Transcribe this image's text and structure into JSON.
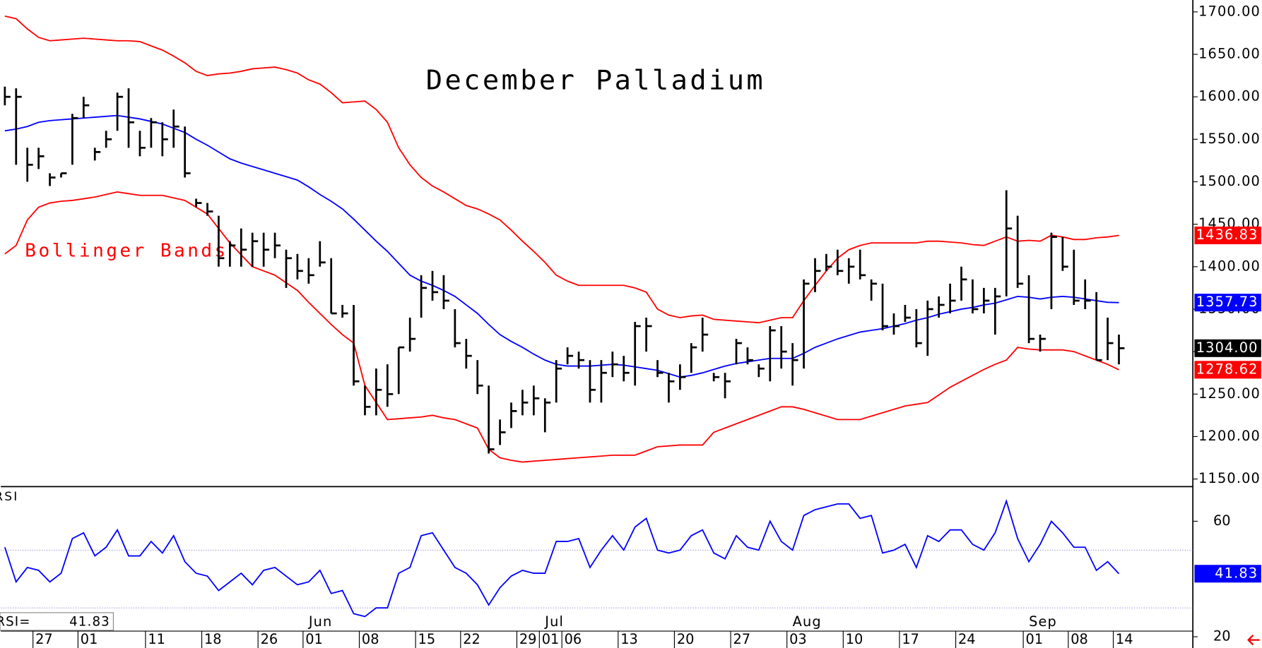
{
  "chart_data": [
    {
      "type": "ohlc",
      "title": "December Palladium",
      "annotation": "Bollinger Bands",
      "color": "#000000",
      "categories": [
        null,
        null,
        null,
        "27",
        null,
        null,
        null,
        "01",
        null,
        null,
        null,
        null,
        null,
        "11",
        null,
        null,
        null,
        null,
        "18",
        null,
        null,
        null,
        null,
        "26",
        null,
        null,
        null,
        "01",
        null,
        null,
        null,
        null,
        "08",
        null,
        null,
        null,
        null,
        "15",
        null,
        null,
        null,
        "22",
        null,
        null,
        null,
        null,
        "29",
        null,
        "01",
        null,
        "06",
        null,
        null,
        null,
        null,
        "13",
        null,
        null,
        null,
        null,
        "20",
        null,
        null,
        null,
        null,
        "27",
        null,
        null,
        null,
        null,
        "03",
        null,
        null,
        null,
        null,
        "10",
        null,
        null,
        null,
        null,
        "17",
        null,
        null,
        null,
        null,
        "24",
        null,
        null,
        null,
        null,
        null,
        "01",
        null,
        null,
        null,
        "08",
        null,
        null,
        null,
        "14"
      ],
      "months": [
        null,
        null,
        null,
        null,
        null,
        null,
        null,
        null,
        null,
        null,
        null,
        null,
        null,
        null,
        null,
        null,
        null,
        null,
        null,
        null,
        null,
        null,
        null,
        null,
        null,
        null,
        null,
        "Jun",
        null,
        null,
        null,
        null,
        null,
        null,
        null,
        null,
        null,
        null,
        null,
        null,
        null,
        null,
        null,
        null,
        null,
        null,
        null,
        null,
        "Jul",
        null,
        null,
        null,
        null,
        null,
        null,
        null,
        null,
        null,
        null,
        null,
        null,
        null,
        null,
        null,
        null,
        null,
        null,
        null,
        null,
        null,
        "Aug",
        null,
        null,
        null,
        null,
        null,
        null,
        null,
        null,
        null,
        null,
        null,
        null,
        null,
        null,
        null,
        null,
        null,
        null,
        null,
        null,
        "Sep",
        null,
        null,
        null,
        null,
        null,
        null,
        null,
        null
      ],
      "high": [
        1612,
        1610,
        1540,
        1540,
        1510,
        1510,
        1580,
        1600,
        1540,
        1560,
        1605,
        1610,
        1560,
        1575,
        1570,
        1585,
        1565,
        1480,
        1475,
        1460,
        1430,
        1445,
        1440,
        1440,
        1440,
        1420,
        1415,
        1410,
        1430,
        1410,
        1355,
        1355,
        1260,
        1280,
        1285,
        1305,
        1340,
        1390,
        1395,
        1390,
        1350,
        1315,
        1290,
        1260,
        1220,
        1240,
        1255,
        1260,
        1245,
        1290,
        1305,
        1300,
        1290,
        1290,
        1300,
        1295,
        1335,
        1340,
        1290,
        1275,
        1285,
        1310,
        1340,
        1275,
        1275,
        1315,
        1305,
        1285,
        1330,
        1330,
        1310,
        1385,
        1410,
        1415,
        1420,
        1410,
        1420,
        1385,
        1380,
        1345,
        1355,
        1350,
        1360,
        1365,
        1380,
        1400,
        1385,
        1375,
        1375,
        1490,
        1460,
        1390,
        1320,
        1440,
        1435,
        1420,
        1385,
        1370,
        1340,
        1320
      ],
      "low": [
        1590,
        1520,
        1500,
        1515,
        1495,
        1505,
        1520,
        1575,
        1525,
        1540,
        1560,
        1540,
        1530,
        1540,
        1530,
        1540,
        1505,
        1470,
        1460,
        1400,
        1400,
        1400,
        1400,
        1400,
        1410,
        1375,
        1385,
        1380,
        1400,
        1345,
        1340,
        1260,
        1225,
        1225,
        1235,
        1250,
        1300,
        1340,
        1360,
        1350,
        1305,
        1280,
        1250,
        1180,
        1190,
        1210,
        1225,
        1225,
        1205,
        1240,
        1285,
        1280,
        1240,
        1240,
        1270,
        1265,
        1260,
        1300,
        1270,
        1240,
        1255,
        1275,
        1300,
        1265,
        1245,
        1285,
        1285,
        1270,
        1265,
        1280,
        1260,
        1280,
        1370,
        1395,
        1390,
        1380,
        1385,
        1360,
        1325,
        1320,
        1335,
        1305,
        1295,
        1340,
        1345,
        1360,
        1345,
        1345,
        1320,
        1365,
        1375,
        1310,
        1300,
        1350,
        1395,
        1355,
        1350,
        1290,
        1290,
        1285
      ],
      "close": [
        1600,
        1600,
        1520,
        1530,
        1505,
        1510,
        1575,
        1590,
        1535,
        1550,
        1600,
        1570,
        1540,
        1570,
        1550,
        1565,
        1510,
        1475,
        1465,
        1410,
        1425,
        1420,
        1430,
        1420,
        1425,
        1410,
        1395,
        1390,
        1405,
        1345,
        1345,
        1265,
        1235,
        1255,
        1250,
        1305,
        1315,
        1375,
        1370,
        1360,
        1310,
        1295,
        1260,
        1185,
        1205,
        1230,
        1240,
        1245,
        1240,
        1280,
        1295,
        1290,
        1255,
        1275,
        1285,
        1275,
        1330,
        1330,
        1275,
        1265,
        1270,
        1305,
        1320,
        1270,
        1265,
        1310,
        1290,
        1280,
        1325,
        1300,
        1290,
        1380,
        1395,
        1400,
        1395,
        1400,
        1390,
        1380,
        1330,
        1330,
        1340,
        1310,
        1350,
        1355,
        1360,
        1385,
        1350,
        1360,
        1365,
        1445,
        1380,
        1315,
        1315,
        1435,
        1400,
        1360,
        1360,
        1290,
        1310,
        1304
      ],
      "close_label": "1304.00",
      "bands": [
        {
          "color": "#ff0000",
          "last_label": "1436.83",
          "values": [
            1695,
            1692,
            1680,
            1670,
            1666,
            1667,
            1668,
            1669,
            1668,
            1667,
            1666,
            1666,
            1665,
            1660,
            1655,
            1648,
            1640,
            1630,
            1625,
            1627,
            1628,
            1630,
            1633,
            1634,
            1635,
            1632,
            1628,
            1620,
            1615,
            1605,
            1593,
            1594,
            1595,
            1585,
            1570,
            1540,
            1520,
            1505,
            1495,
            1488,
            1480,
            1472,
            1468,
            1462,
            1455,
            1443,
            1430,
            1418,
            1405,
            1390,
            1383,
            1378,
            1378,
            1378,
            1378,
            1378,
            1375,
            1370,
            1350,
            1343,
            1340,
            1342,
            1343,
            1338,
            1337,
            1336,
            1335,
            1334,
            1337,
            1340,
            1340,
            1360,
            1378,
            1395,
            1410,
            1420,
            1425,
            1428,
            1428,
            1428,
            1428,
            1428,
            1430,
            1430,
            1429,
            1428,
            1426,
            1425,
            1430,
            1435,
            1430,
            1431,
            1430,
            1437,
            1435,
            1432,
            1432,
            1434,
            1435,
            1436.83
          ]
        },
        {
          "color": "#0000ff",
          "last_label": "1357.73",
          "values": [
            1560,
            1562,
            1565,
            1570,
            1572,
            1573,
            1574,
            1575,
            1576,
            1577,
            1578,
            1576,
            1574,
            1571,
            1568,
            1563,
            1558,
            1550,
            1543,
            1535,
            1527,
            1522,
            1518,
            1514,
            1510,
            1506,
            1502,
            1494,
            1485,
            1477,
            1468,
            1456,
            1443,
            1430,
            1418,
            1404,
            1390,
            1383,
            1378,
            1372,
            1365,
            1355,
            1345,
            1332,
            1320,
            1312,
            1305,
            1297,
            1290,
            1285,
            1283,
            1283,
            1283,
            1284,
            1285,
            1284,
            1282,
            1280,
            1278,
            1274,
            1270,
            1272,
            1275,
            1279,
            1283,
            1286,
            1288,
            1290,
            1292,
            1292,
            1292,
            1298,
            1305,
            1310,
            1315,
            1319,
            1323,
            1325,
            1327,
            1330,
            1333,
            1337,
            1340,
            1344,
            1347,
            1350,
            1352,
            1355,
            1357,
            1361,
            1365,
            1364,
            1362,
            1364,
            1365,
            1364,
            1362,
            1360,
            1358,
            1357.73
          ]
        },
        {
          "color": "#ff0000",
          "last_label": "1278.62",
          "values": [
            1415,
            1425,
            1455,
            1470,
            1475,
            1477,
            1478,
            1480,
            1482,
            1485,
            1488,
            1486,
            1484,
            1484,
            1484,
            1481,
            1478,
            1470,
            1462,
            1445,
            1428,
            1414,
            1400,
            1395,
            1390,
            1381,
            1372,
            1358,
            1345,
            1332,
            1320,
            1310,
            1260,
            1240,
            1220,
            1221,
            1222,
            1223,
            1225,
            1222,
            1220,
            1215,
            1210,
            1185,
            1175,
            1172,
            1170,
            1171,
            1172,
            1173,
            1174,
            1175,
            1176,
            1177,
            1178,
            1178,
            1178,
            1183,
            1188,
            1189,
            1190,
            1190,
            1190,
            1205,
            1210,
            1215,
            1220,
            1225,
            1230,
            1235,
            1235,
            1232,
            1228,
            1224,
            1220,
            1220,
            1220,
            1224,
            1228,
            1232,
            1236,
            1238,
            1240,
            1249,
            1258,
            1265,
            1272,
            1279,
            1285,
            1290,
            1305,
            1303,
            1302,
            1302,
            1302,
            1300,
            1295,
            1290,
            1285,
            1278.62
          ]
        }
      ],
      "ylim": [
        1142,
        1714
      ],
      "yticks": [
        {
          "value": 1150,
          "label": "1150.00"
        },
        {
          "value": 1200,
          "label": "1200.00"
        },
        {
          "value": 1250,
          "label": "1250.00"
        },
        {
          "value": 1300,
          "label": "1300.00"
        },
        {
          "value": 1350,
          "label": "1350.00"
        },
        {
          "value": 1400,
          "label": "1400.00"
        },
        {
          "value": 1450,
          "label": "1450.00"
        },
        {
          "value": 1500,
          "label": "1500.00"
        },
        {
          "value": 1550,
          "label": "1550.00"
        },
        {
          "value": 1600,
          "label": "1600.00"
        },
        {
          "value": 1650,
          "label": "1650.00"
        },
        {
          "value": 1700,
          "label": "1700.00"
        }
      ]
    },
    {
      "type": "line",
      "label": "RSI",
      "readout_label": "RSI=",
      "color": "#0000ff",
      "value_label": "41.83",
      "values": [
        51,
        39,
        44,
        43,
        39,
        42,
        54,
        56,
        48,
        51,
        57,
        48,
        48,
        53,
        49,
        55,
        46,
        42,
        41,
        36,
        39,
        42,
        38,
        43,
        44,
        41,
        38,
        39,
        43,
        35,
        36,
        28,
        27,
        30,
        30,
        42,
        44,
        55,
        56,
        50,
        44,
        42,
        38,
        31,
        37,
        41,
        43,
        42,
        42,
        53,
        53,
        54,
        44,
        50,
        55,
        50,
        58,
        61,
        50,
        49,
        50,
        55,
        57,
        49,
        47,
        55,
        51,
        50,
        60,
        53,
        50,
        62,
        64,
        65,
        66,
        66,
        61,
        62,
        49,
        50,
        52,
        44,
        55,
        53,
        57,
        57,
        52,
        50,
        56,
        67,
        54,
        46,
        52,
        60,
        56,
        51,
        51,
        43,
        46,
        41.83
      ],
      "ylim": [
        20,
        72
      ],
      "yticks": [
        20,
        60
      ],
      "hlines": [
        50,
        30
      ]
    }
  ]
}
